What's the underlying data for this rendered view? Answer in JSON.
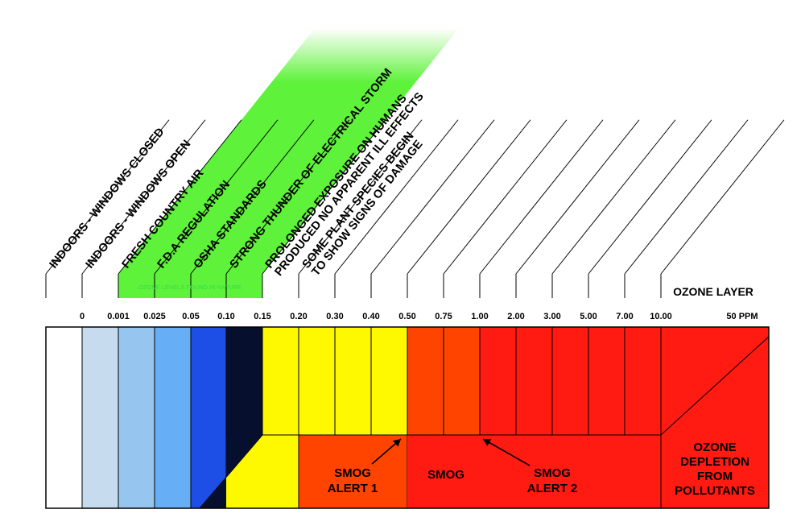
{
  "scale_labels": [
    "0",
    "0.001",
    "0.025",
    "0.05",
    "0.10",
    "0.15",
    "0.20",
    "0.30",
    "0.40",
    "0.50",
    "0.75",
    "1.00",
    "2.00",
    "3.00",
    "5.00",
    "7.00",
    "10.00",
    "50 PPM"
  ],
  "ozone_layer_label": "OZONE LAYER",
  "nature_band_label": "OZONE LEVELS FOUND IN NATURE",
  "slanted_labels": [
    {
      "lines": [
        "INDOORS - WINDOWS CLOSED"
      ]
    },
    {
      "lines": [
        "INDOORS - WINDOWS OPEN"
      ]
    },
    {
      "lines": [
        "FRESH COUNTRY AIR"
      ]
    },
    {
      "lines": [
        "F.D.A REGULATION"
      ]
    },
    {
      "lines": [
        "OSHA STANDARDS"
      ]
    },
    {
      "lines": [
        "STRONG THUNDER OF ELECTRICAL STORM"
      ]
    },
    {
      "lines": [
        "PROLONGED EXPOSURE ON HUMANS",
        "PRODUCED NO APPARENT ILL EFFECTS"
      ]
    },
    {
      "lines": [
        "SOME PLANT SPECIES BEGIN",
        "TO SHOW SIGNS OF DAMAGE"
      ]
    }
  ],
  "band_colors": [
    "#ffffff",
    "#c6dcee",
    "#96c6f0",
    "#66aef5",
    "#1d4fe6",
    "#06102e",
    "#fff900",
    "#fff900",
    "#fff900",
    "#fff900",
    "#ff4400",
    "#ff4400",
    "#ff1a12",
    "#ff1a12",
    "#ff1a12",
    "#ff1a12",
    "#ff1a12"
  ],
  "region_labels": {
    "smog_alert_1": [
      "SMOG",
      "ALERT 1"
    ],
    "smog": [
      "SMOG"
    ],
    "smog_alert_2": [
      "SMOG",
      "ALERT 2"
    ],
    "ozone_depletion": [
      "OZONE",
      "DEPLETION",
      "FROM",
      "POLLUTANTS"
    ]
  },
  "colors": {
    "green": "#5ef23a",
    "yellow": "#fff900",
    "orange": "#ff4400",
    "red": "#ff1a12",
    "nature_text": "#39d94a"
  }
}
